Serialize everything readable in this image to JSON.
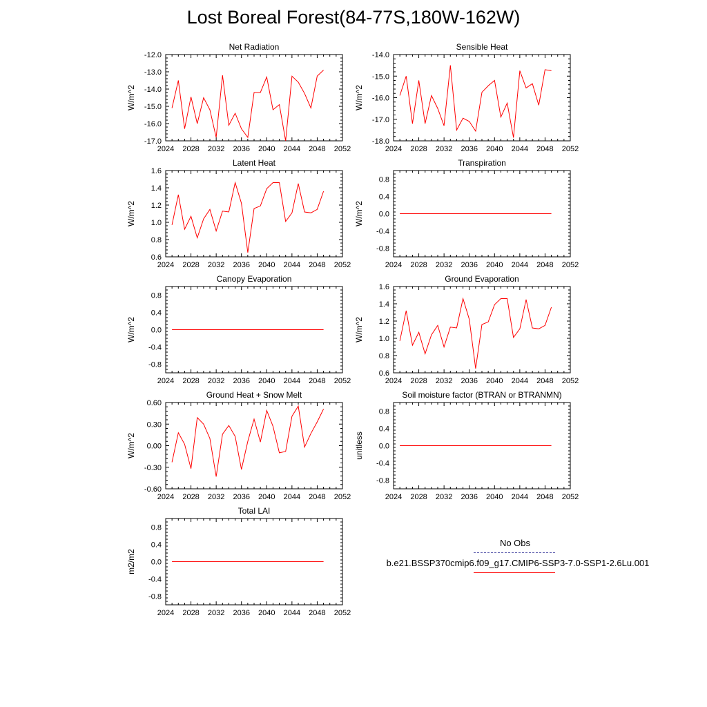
{
  "title": "Lost Boreal Forest(84-77S,180W-162W)",
  "colors": {
    "series": "#ff0000",
    "obs": "#5555aa"
  },
  "legend": {
    "obs_label": "No Obs",
    "series_label": "b.e21.BSSP370cmip6.f09_g17.CMIP6-SSP3-7.0-SSP1-2.6Lu.001"
  },
  "chart_data": [
    {
      "type": "line",
      "title": "Net Radiation",
      "ylabel": "W/m^2",
      "xlim": [
        2024,
        2052
      ],
      "xticks": [
        "2024",
        "2028",
        "2032",
        "2036",
        "2040",
        "2044",
        "2048",
        "2052"
      ],
      "ylim": [
        -17.0,
        -12.0
      ],
      "yticks": [
        "-17.0",
        "-16.0",
        "-15.0",
        "-14.0",
        "-13.0",
        "-12.0"
      ],
      "series": [
        {
          "x": [
            2025,
            2026,
            2027,
            2028,
            2029,
            2030,
            2031,
            2032,
            2033,
            2034,
            2035,
            2036,
            2037,
            2038,
            2039,
            2040,
            2041,
            2042,
            2043,
            2044,
            2045,
            2046,
            2047,
            2048,
            2049
          ],
          "values": [
            -15.1,
            -13.5,
            -16.3,
            -14.45,
            -16.0,
            -14.5,
            -15.2,
            -16.8,
            -13.2,
            -16.1,
            -15.4,
            -16.3,
            -16.8,
            -14.2,
            -14.2,
            -13.3,
            -15.2,
            -14.9,
            -17.0,
            -13.25,
            -13.6,
            -14.25,
            -15.1,
            -13.25,
            -12.9
          ]
        }
      ]
    },
    {
      "type": "line",
      "title": "Sensible Heat",
      "ylabel": "W/m^2",
      "xlim": [
        2024,
        2052
      ],
      "xticks": [
        "2024",
        "2028",
        "2032",
        "2036",
        "2040",
        "2044",
        "2048",
        "2052"
      ],
      "ylim": [
        -18.0,
        -14.0
      ],
      "yticks": [
        "-18.0",
        "-17.0",
        "-16.0",
        "-15.0",
        "-14.0"
      ],
      "series": [
        {
          "x": [
            2025,
            2026,
            2027,
            2028,
            2029,
            2030,
            2031,
            2032,
            2033,
            2034,
            2035,
            2036,
            2037,
            2038,
            2039,
            2040,
            2041,
            2042,
            2043,
            2044,
            2045,
            2046,
            2047,
            2048,
            2049
          ],
          "values": [
            -15.9,
            -15.0,
            -17.2,
            -15.2,
            -17.2,
            -15.9,
            -16.5,
            -17.3,
            -14.5,
            -17.5,
            -16.95,
            -17.1,
            -17.55,
            -15.75,
            -15.45,
            -15.2,
            -16.9,
            -16.25,
            -17.85,
            -14.75,
            -15.55,
            -15.35,
            -16.35,
            -14.7,
            -14.75
          ]
        }
      ]
    },
    {
      "type": "line",
      "title": "Latent Heat",
      "ylabel": "W/m^2",
      "xlim": [
        2024,
        2052
      ],
      "xticks": [
        "2024",
        "2028",
        "2032",
        "2036",
        "2040",
        "2044",
        "2048",
        "2052"
      ],
      "ylim": [
        0.6,
        1.6
      ],
      "yticks": [
        "0.6",
        "0.8",
        "1.0",
        "1.2",
        "1.4",
        "1.6"
      ],
      "series": [
        {
          "x": [
            2025,
            2026,
            2027,
            2028,
            2029,
            2030,
            2031,
            2032,
            2033,
            2034,
            2035,
            2036,
            2037,
            2038,
            2039,
            2040,
            2041,
            2042,
            2043,
            2044,
            2045,
            2046,
            2047,
            2048,
            2049
          ],
          "values": [
            0.97,
            1.32,
            0.92,
            1.07,
            0.82,
            1.04,
            1.15,
            0.9,
            1.13,
            1.12,
            1.46,
            1.22,
            0.65,
            1.16,
            1.19,
            1.39,
            1.46,
            1.46,
            1.01,
            1.11,
            1.45,
            1.12,
            1.11,
            1.15,
            1.36
          ]
        }
      ]
    },
    {
      "type": "line",
      "title": "Transpiration",
      "ylabel": "W/m^2",
      "xlim": [
        2024,
        2052
      ],
      "xticks": [
        "2024",
        "2028",
        "2032",
        "2036",
        "2040",
        "2044",
        "2048",
        "2052"
      ],
      "ylim": [
        -1.0,
        1.0
      ],
      "yticks": [
        "-0.8",
        "-0.4",
        "0.0",
        "0.4",
        "0.8"
      ],
      "series": [
        {
          "x": [
            2025,
            2026,
            2027,
            2028,
            2029,
            2030,
            2031,
            2032,
            2033,
            2034,
            2035,
            2036,
            2037,
            2038,
            2039,
            2040,
            2041,
            2042,
            2043,
            2044,
            2045,
            2046,
            2047,
            2048,
            2049
          ],
          "values": [
            0,
            0,
            0,
            0,
            0,
            0,
            0,
            0,
            0,
            0,
            0,
            0,
            0,
            0,
            0,
            0,
            0,
            0,
            0,
            0,
            0,
            0,
            0,
            0,
            0
          ]
        }
      ]
    },
    {
      "type": "line",
      "title": "Canopy Evaporation",
      "ylabel": "W/m^2",
      "xlim": [
        2024,
        2052
      ],
      "xticks": [
        "2024",
        "2028",
        "2032",
        "2036",
        "2040",
        "2044",
        "2048",
        "2052"
      ],
      "ylim": [
        -1.0,
        1.0
      ],
      "yticks": [
        "-0.8",
        "-0.4",
        "0.0",
        "0.4",
        "0.8"
      ],
      "series": [
        {
          "x": [
            2025,
            2026,
            2027,
            2028,
            2029,
            2030,
            2031,
            2032,
            2033,
            2034,
            2035,
            2036,
            2037,
            2038,
            2039,
            2040,
            2041,
            2042,
            2043,
            2044,
            2045,
            2046,
            2047,
            2048,
            2049
          ],
          "values": [
            0,
            0,
            0,
            0,
            0,
            0,
            0,
            0,
            0,
            0,
            0,
            0,
            0,
            0,
            0,
            0,
            0,
            0,
            0,
            0,
            0,
            0,
            0,
            0,
            0
          ]
        }
      ]
    },
    {
      "type": "line",
      "title": "Ground Evaporation",
      "ylabel": "W/m^2",
      "xlim": [
        2024,
        2052
      ],
      "xticks": [
        "2024",
        "2028",
        "2032",
        "2036",
        "2040",
        "2044",
        "2048",
        "2052"
      ],
      "ylim": [
        0.6,
        1.6
      ],
      "yticks": [
        "0.6",
        "0.8",
        "1.0",
        "1.2",
        "1.4",
        "1.6"
      ],
      "series": [
        {
          "x": [
            2025,
            2026,
            2027,
            2028,
            2029,
            2030,
            2031,
            2032,
            2033,
            2034,
            2035,
            2036,
            2037,
            2038,
            2039,
            2040,
            2041,
            2042,
            2043,
            2044,
            2045,
            2046,
            2047,
            2048,
            2049
          ],
          "values": [
            0.97,
            1.32,
            0.92,
            1.07,
            0.82,
            1.04,
            1.15,
            0.9,
            1.13,
            1.12,
            1.46,
            1.22,
            0.65,
            1.16,
            1.19,
            1.39,
            1.46,
            1.46,
            1.01,
            1.11,
            1.45,
            1.12,
            1.11,
            1.15,
            1.36
          ]
        }
      ]
    },
    {
      "type": "line",
      "title": "Ground Heat + Snow Melt",
      "ylabel": "W/m^2",
      "xlim": [
        2024,
        2052
      ],
      "xticks": [
        "2024",
        "2028",
        "2032",
        "2036",
        "2040",
        "2044",
        "2048",
        "2052"
      ],
      "ylim": [
        -0.6,
        0.6
      ],
      "yticks": [
        "-0.60",
        "-0.30",
        "0.00",
        "0.30",
        "0.60"
      ],
      "series": [
        {
          "x": [
            2025,
            2026,
            2027,
            2028,
            2029,
            2030,
            2031,
            2032,
            2033,
            2034,
            2035,
            2036,
            2037,
            2038,
            2039,
            2040,
            2041,
            2042,
            2043,
            2044,
            2045,
            2046,
            2047,
            2048,
            2049
          ],
          "values": [
            -0.23,
            0.18,
            0.02,
            -0.32,
            0.39,
            0.3,
            0.1,
            -0.43,
            0.16,
            0.28,
            0.13,
            -0.33,
            0.06,
            0.37,
            0.05,
            0.49,
            0.27,
            -0.1,
            -0.08,
            0.41,
            0.55,
            -0.02,
            0.17,
            0.33,
            0.51
          ]
        }
      ]
    },
    {
      "type": "line",
      "title": "Soil moisture factor (BTRAN or BTRANMN)",
      "ylabel": "unitless",
      "xlim": [
        2024,
        2052
      ],
      "xticks": [
        "2024",
        "2028",
        "2032",
        "2036",
        "2040",
        "2044",
        "2048",
        "2052"
      ],
      "ylim": [
        -1.0,
        1.0
      ],
      "yticks": [
        "-0.8",
        "-0.4",
        "0.0",
        "0.4",
        "0.8"
      ],
      "series": [
        {
          "x": [
            2025,
            2026,
            2027,
            2028,
            2029,
            2030,
            2031,
            2032,
            2033,
            2034,
            2035,
            2036,
            2037,
            2038,
            2039,
            2040,
            2041,
            2042,
            2043,
            2044,
            2045,
            2046,
            2047,
            2048,
            2049
          ],
          "values": [
            0,
            0,
            0,
            0,
            0,
            0,
            0,
            0,
            0,
            0,
            0,
            0,
            0,
            0,
            0,
            0,
            0,
            0,
            0,
            0,
            0,
            0,
            0,
            0,
            0
          ]
        }
      ]
    },
    {
      "type": "line",
      "title": "Total LAI",
      "ylabel": "m2/m2",
      "xlim": [
        2024,
        2052
      ],
      "xticks": [
        "2024",
        "2028",
        "2032",
        "2036",
        "2040",
        "2044",
        "2048",
        "2052"
      ],
      "ylim": [
        -1.0,
        1.0
      ],
      "yticks": [
        "-0.8",
        "-0.4",
        "0.0",
        "0.4",
        "0.8"
      ],
      "series": [
        {
          "x": [
            2025,
            2026,
            2027,
            2028,
            2029,
            2030,
            2031,
            2032,
            2033,
            2034,
            2035,
            2036,
            2037,
            2038,
            2039,
            2040,
            2041,
            2042,
            2043,
            2044,
            2045,
            2046,
            2047,
            2048,
            2049
          ],
          "values": [
            0,
            0,
            0,
            0,
            0,
            0,
            0,
            0,
            0,
            0,
            0,
            0,
            0,
            0,
            0,
            0,
            0,
            0,
            0,
            0,
            0,
            0,
            0,
            0,
            0
          ]
        }
      ]
    }
  ]
}
